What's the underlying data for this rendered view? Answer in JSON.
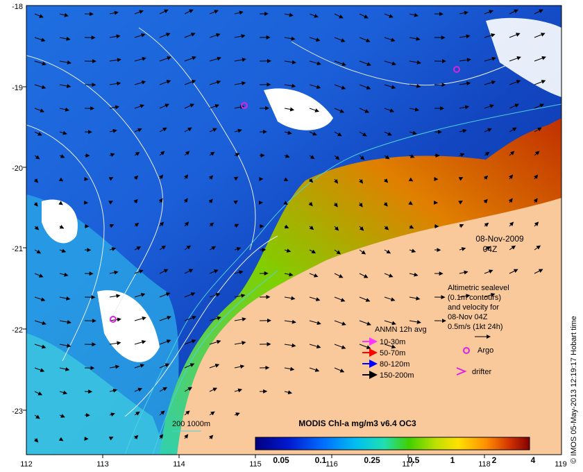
{
  "map": {
    "lon_ticks": [
      "112",
      "113",
      "114",
      "115",
      "116",
      "117",
      "118",
      "119"
    ],
    "lat_ticks": [
      "-18",
      "-19",
      "-20",
      "-21",
      "-22",
      "-23"
    ],
    "colors": {
      "land": "#f9c89b",
      "ocean_deep": "#0a2aa0",
      "ocean_mid": "#1f78e6",
      "ocean_light": "#2cb4e8",
      "cloud": "#ffffff",
      "contour": "#e8eef5",
      "isobath": "#4fd0e0"
    }
  },
  "date": {
    "line1": "08-Nov-2009",
    "line2": "04Z"
  },
  "altimetry": {
    "lines": [
      "Altimetric sealevel",
      "(0.1m contours)",
      "and velocity for",
      "08-Nov 04Z",
      "0.5m/s (1kt 24h)"
    ]
  },
  "legend": {
    "title": "ANMN 12h avg",
    "items": [
      {
        "label": "10-30m",
        "color": "#ff33ff"
      },
      {
        "label": "50-70m",
        "color": "#ff0000"
      },
      {
        "label": "80-120m",
        "color": "#0000ff"
      },
      {
        "label": "150-200m",
        "color": "#000000"
      }
    ],
    "argo": "Argo",
    "drifter": "drifter",
    "marker_color": "#e020e0"
  },
  "isobath": {
    "label": "200  1000m"
  },
  "colorbar": {
    "title": "MODIS Chl-a mg/m3 v6.4 OC3",
    "ticks": [
      "0.05",
      "0.1",
      "0.25",
      "0.5",
      "1",
      "2",
      "4"
    ]
  },
  "credit": "© IMOS 05-May-2013 12:19:17 Hobart time"
}
